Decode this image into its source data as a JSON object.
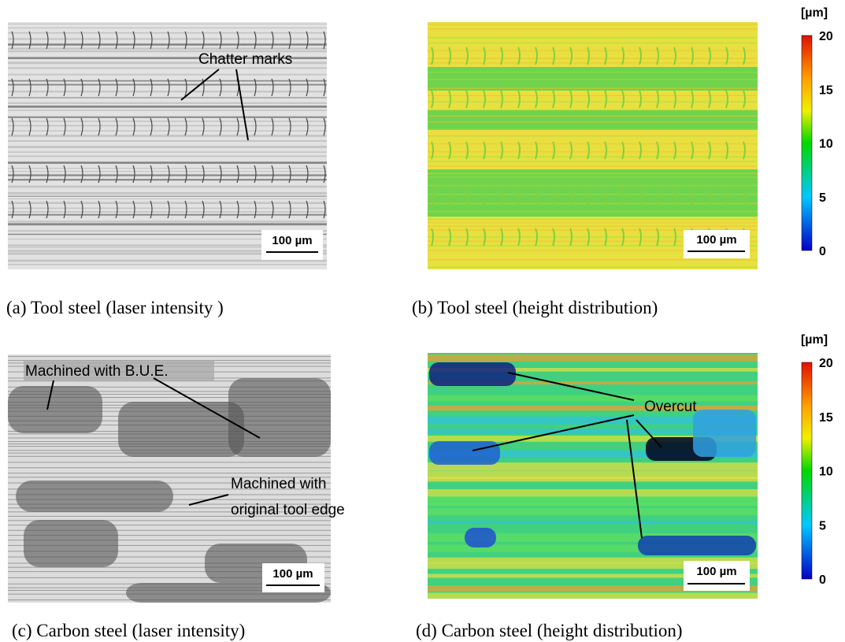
{
  "panels": [
    {
      "caption": "(a) Tool steel (laser intensity )",
      "scale_bar": "100 µm",
      "annotations": [
        "Chatter marks"
      ]
    },
    {
      "caption": "(b) Tool steel (height distribution)",
      "scale_bar": "100 µm",
      "colorbar": {
        "unit": "[µm]",
        "ticks": [
          0,
          5,
          10,
          15,
          20
        ]
      }
    },
    {
      "caption": "(c) Carbon steel (laser intensity)",
      "scale_bar": "100 µm",
      "annotations": [
        "Machined with B.U.E.",
        "Machined with",
        "original tool edge"
      ]
    },
    {
      "caption": "(d) Carbon steel (height distribution)",
      "scale_bar": "100 µm",
      "annotations": [
        "Overcut"
      ],
      "colorbar": {
        "unit": "[µm]",
        "ticks": [
          0,
          5,
          10,
          15,
          20
        ]
      }
    }
  ]
}
